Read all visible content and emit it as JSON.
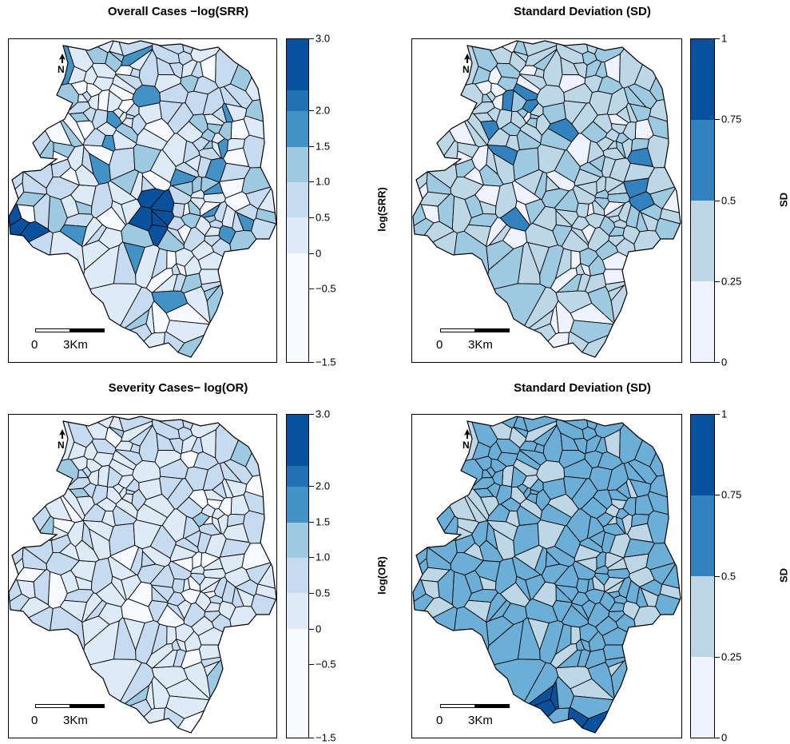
{
  "panels": [
    {
      "title": "Overall Cases −log(SRR)",
      "legend_title": "log(SRR)",
      "legend_ticks": [
        "3.0",
        "2.0",
        "1.5",
        "1.0",
        "0.5",
        "0",
        "−0.5",
        "−1.5"
      ],
      "scale_labels": [
        "0",
        "3Km"
      ]
    },
    {
      "title": "Standard Deviation (SD)",
      "legend_title": "SD",
      "legend_ticks": [
        "1",
        "0.75",
        "0.5",
        "0.25",
        "0"
      ],
      "scale_labels": [
        "0",
        "3Km"
      ]
    },
    {
      "title": "Severity Cases− log(OR)",
      "legend_title": "log(OR)",
      "legend_ticks": [
        "3.0",
        "2.0",
        "1.5",
        "1.0",
        "0.5",
        "0",
        "−0.5",
        "−1.5"
      ],
      "scale_labels": [
        "0",
        "3Km"
      ]
    },
    {
      "title": "Standard Deviation (SD)",
      "legend_title": "SD",
      "legend_ticks": [
        "1",
        "0.75",
        "0.5",
        "0.25",
        "0"
      ],
      "scale_labels": [
        "0",
        "3Km"
      ]
    }
  ],
  "palettes": {
    "log_scale": [
      "#08519c",
      "#2171b5",
      "#4292c6",
      "#9ecae1",
      "#c6dbef",
      "#deebf7",
      "#f7fbff"
    ],
    "sd_scale": [
      "#08519c",
      "#3182bd",
      "#bdd7e7",
      "#eff3ff"
    ]
  },
  "north_arrow_icon": "north-arrow-icon"
}
